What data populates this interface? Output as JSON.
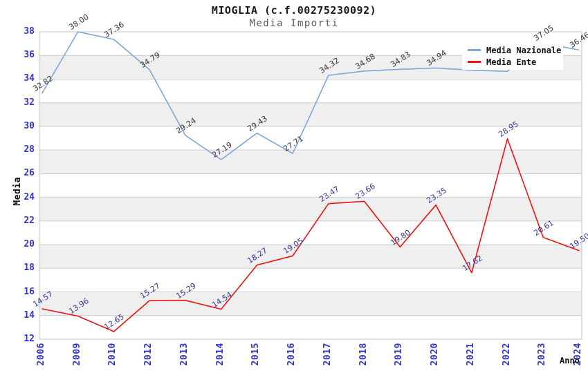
{
  "title": "MIOGLIA (c.f.00275230092)",
  "subtitle": "Media Importi",
  "axes": {
    "y_title": "Media",
    "x_title": "Anno",
    "tick_color": "#3333cc"
  },
  "colors": {
    "band_gray": "#efefef",
    "grid_line": "#cccccc",
    "plot_border": "#c4c4c4",
    "background": "#ffffff"
  },
  "legend": {
    "position": "top-right",
    "items": [
      {
        "label": "Media Nazionale",
        "color": "#7da7d8"
      },
      {
        "label": "Media Ente",
        "color": "#ee1111"
      }
    ]
  },
  "chart_data": {
    "type": "line",
    "title": "MIOGLIA (c.f.00275230092)",
    "subtitle": "Media Importi",
    "xlabel": "Anno",
    "ylabel": "Media",
    "ylim": [
      12,
      38
    ],
    "ytick_step": 2,
    "grid": "horizontal gridlines with alternating shaded bands",
    "legend_position": "top-right",
    "categories": [
      "2006",
      "2009",
      "2010",
      "2012",
      "2013",
      "2014",
      "2015",
      "2016",
      "2017",
      "2018",
      "2019",
      "2020",
      "2021",
      "2022",
      "2023",
      "2024"
    ],
    "series": [
      {
        "name": "Media Nazionale",
        "color": "#7da7d8",
        "label_color": "#333333",
        "values": [
          32.82,
          38.0,
          37.36,
          34.79,
          29.24,
          27.19,
          29.43,
          27.71,
          34.32,
          34.68,
          34.83,
          34.94,
          34.75,
          34.65,
          37.05,
          36.46
        ],
        "labels": [
          "32.82",
          "38.00",
          "37.36",
          "34.79",
          "29.24",
          "27.19",
          "29.43",
          "27.71",
          "34.32",
          "34.68",
          "34.83",
          "34.94",
          "",
          "",
          "37.05",
          "36.46"
        ]
      },
      {
        "name": "Media Ente",
        "color": "#ee1111",
        "label_color": "#333399",
        "values": [
          14.57,
          13.96,
          12.65,
          15.27,
          15.29,
          14.54,
          18.27,
          19.05,
          23.47,
          23.66,
          19.8,
          23.35,
          17.62,
          28.95,
          20.61,
          19.5
        ],
        "labels": [
          "14.57",
          "13.96",
          "12.65",
          "15.27",
          "15.29",
          "14.54",
          "18.27",
          "19.05",
          "23.47",
          "23.66",
          "19.80",
          "23.35",
          "17.62",
          "28.95",
          "20.61",
          "19.50"
        ]
      }
    ]
  }
}
